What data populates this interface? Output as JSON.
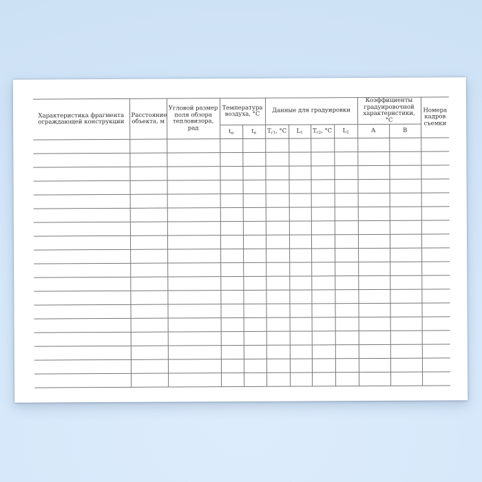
{
  "document": {
    "kind": "blank-journal-form",
    "language": "ru"
  },
  "colors": {
    "background_top": "#d6e8fa",
    "background_bottom_glow": "#ddecfc",
    "background_edge": "#cde1f5",
    "page": "#ffffff",
    "grid_line": "#757575",
    "text": "#2b2b2b"
  },
  "table": {
    "row_count": 18,
    "leaf_column_count": 12,
    "columns": [
      {
        "label": "Характеристика фрагмента ограждающей конструкции"
      },
      {
        "label": "Расстояние объекта, м"
      },
      {
        "label": "Угловой размер поля обзора тепловизора, рад"
      },
      {
        "label": "Температура воздуха, °С",
        "children": [
          "tн",
          "tв"
        ]
      },
      {
        "label": "Данные для градуировки",
        "children": [
          "Тг1, °С",
          "L1",
          "Тг2, °С",
          "L2"
        ]
      },
      {
        "label": "Коэффициенты градуировочной характеристики, °С",
        "children": [
          "А",
          "В"
        ]
      },
      {
        "label": "Номера кадров съемки"
      }
    ],
    "sub_headers": [
      {
        "main": "t",
        "sub": "н",
        "suffix": ""
      },
      {
        "main": "t",
        "sub": "в",
        "suffix": ""
      },
      {
        "main": "Т",
        "sub": "г1",
        "suffix": ", °С"
      },
      {
        "main": "L",
        "sub": "1",
        "suffix": ""
      },
      {
        "main": "Т",
        "sub": "г2",
        "suffix": ", °С"
      },
      {
        "main": "L",
        "sub": "2",
        "suffix": ""
      },
      {
        "main": "А",
        "sub": "",
        "suffix": ""
      },
      {
        "main": "В",
        "sub": "",
        "suffix": ""
      }
    ],
    "cells": []
  }
}
